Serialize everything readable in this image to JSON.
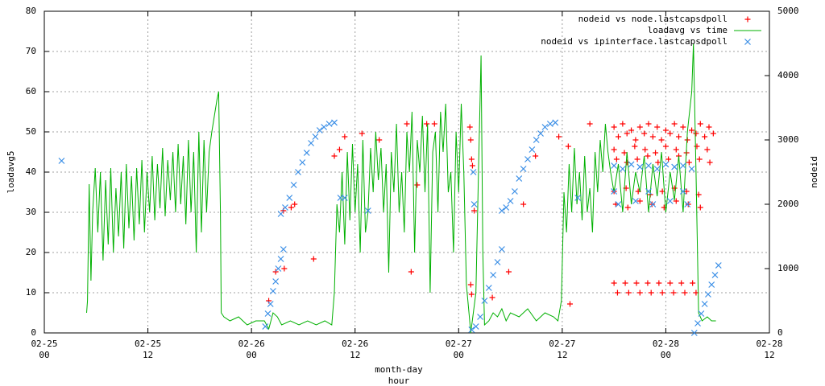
{
  "chart_data": {
    "type": "line",
    "xlabel": [
      "month-day",
      "hour"
    ],
    "ylabel": "loadavg5",
    "y2label": "nodeid",
    "grid": true,
    "legend": "top-right",
    "xlim": [
      0,
      84
    ],
    "xticks": [
      {
        "value": 0,
        "label": [
          "02-25",
          "00"
        ]
      },
      {
        "value": 12,
        "label": [
          "02-25",
          "12"
        ]
      },
      {
        "value": 24,
        "label": [
          "02-26",
          "00"
        ]
      },
      {
        "value": 36,
        "label": [
          "02-26",
          "12"
        ]
      },
      {
        "value": 48,
        "label": [
          "02-27",
          "00"
        ]
      },
      {
        "value": 60,
        "label": [
          "02-27",
          "12"
        ]
      },
      {
        "value": 72,
        "label": [
          "02-28",
          "00"
        ]
      },
      {
        "value": 84,
        "label": [
          "02-28",
          "12"
        ]
      }
    ],
    "ylim": [
      0,
      80
    ],
    "yticks": [
      0,
      10,
      20,
      30,
      40,
      50,
      60,
      70,
      80
    ],
    "y2lim": [
      0,
      5000
    ],
    "y2ticks": [
      0,
      1000,
      2000,
      3000,
      4000,
      5000
    ],
    "series": [
      {
        "name": "nodeid vs node.lastcapsdpoll",
        "type": "scatter",
        "marker": "plus",
        "color": "#ff0000",
        "axis": "y2",
        "x": [
          26.0,
          26.8,
          27.8,
          27.7,
          28.6,
          29.0,
          31.2,
          33.6,
          34.2,
          34.8,
          36.8,
          38.8,
          42.0,
          43.2,
          44.3,
          45.2,
          42.5,
          49.3,
          49.4,
          49.5,
          49.6,
          49.4,
          49.5,
          49.8,
          51.9,
          53.8,
          55.5,
          56.9,
          59.6,
          60.7,
          60.9,
          63.2,
          66.0,
          67.0,
          68.0,
          69.0,
          70.0,
          71.0,
          72.0,
          73.0,
          74.0,
          75.0,
          76.0,
          77.0,
          66.5,
          67.5,
          68.5,
          69.5,
          70.5,
          71.5,
          72.5,
          73.5,
          74.5,
          75.5,
          76.5,
          77.5,
          66.0,
          67.2,
          68.4,
          69.6,
          70.8,
          72.0,
          73.2,
          74.4,
          75.6,
          76.8,
          66.3,
          67.5,
          68.7,
          69.9,
          71.1,
          72.3,
          73.5,
          74.7,
          75.9,
          77.1,
          66.0,
          67.4,
          68.8,
          70.2,
          71.6,
          73.0,
          74.4,
          75.8,
          66.2,
          67.6,
          69.0,
          70.4,
          71.8,
          73.2,
          74.6,
          76.0,
          66.0,
          67.3,
          68.6,
          69.9,
          71.2,
          72.5,
          73.8,
          75.1,
          66.4,
          67.7,
          69.0,
          70.3,
          71.6,
          72.9,
          74.2,
          75.5
        ],
        "values": [
          500,
          950,
          1000,
          1900,
          1950,
          2000,
          1150,
          2750,
          2850,
          3050,
          3100,
          3000,
          3250,
          2300,
          3250,
          3250,
          950,
          3200,
          3000,
          2700,
          2600,
          750,
          600,
          1900,
          550,
          950,
          2000,
          2750,
          3050,
          2900,
          450,
          3250,
          3200,
          3250,
          3150,
          3200,
          3250,
          3200,
          3150,
          3250,
          3200,
          3150,
          3250,
          3200,
          3050,
          3100,
          3000,
          3100,
          3050,
          3000,
          3100,
          3050,
          3000,
          3100,
          3050,
          3100,
          2850,
          2800,
          2900,
          2850,
          2800,
          2900,
          2850,
          2800,
          2900,
          2850,
          2700,
          2650,
          2700,
          2750,
          2650,
          2700,
          2750,
          2650,
          2700,
          2650,
          2200,
          2250,
          2200,
          2150,
          2200,
          2250,
          2200,
          2150,
          2000,
          1950,
          2050,
          2000,
          1950,
          2050,
          2000,
          1950,
          775,
          775,
          775,
          775,
          775,
          775,
          775,
          775,
          625,
          625,
          625,
          625,
          625,
          625,
          625,
          625
        ]
      },
      {
        "name": "loadavg vs time",
        "type": "line",
        "color": "#00b000",
        "axis": "y",
        "x": [
          4.9,
          5.0,
          5.2,
          5.4,
          5.6,
          5.9,
          6.2,
          6.5,
          6.8,
          7.1,
          7.4,
          7.7,
          8.0,
          8.3,
          8.6,
          8.9,
          9.2,
          9.5,
          9.8,
          10.1,
          10.4,
          10.7,
          11.0,
          11.3,
          11.6,
          11.9,
          12.2,
          12.5,
          12.8,
          13.1,
          13.4,
          13.7,
          14.0,
          14.3,
          14.6,
          14.9,
          15.2,
          15.5,
          15.8,
          16.1,
          16.4,
          16.7,
          17.0,
          17.3,
          17.6,
          17.9,
          18.2,
          18.5,
          18.8,
          19.1,
          19.4,
          19.7,
          20.0,
          20.2,
          20.4,
          20.5,
          20.8,
          21.5,
          22.5,
          23.5,
          24.5,
          25.5,
          26.0,
          26.5,
          27.0,
          27.5,
          28.5,
          29.5,
          30.5,
          31.5,
          32.5,
          33.3,
          33.6,
          33.9,
          34.2,
          34.5,
          34.8,
          35.1,
          35.4,
          35.7,
          36.0,
          36.3,
          36.6,
          36.9,
          37.2,
          37.5,
          37.8,
          38.1,
          38.4,
          38.7,
          39.0,
          39.3,
          39.6,
          39.9,
          40.2,
          40.5,
          40.8,
          41.1,
          41.4,
          41.7,
          42.0,
          42.3,
          42.6,
          42.9,
          43.2,
          43.5,
          43.8,
          44.1,
          44.4,
          44.7,
          45.0,
          45.3,
          45.6,
          45.9,
          46.2,
          46.5,
          46.8,
          47.1,
          47.4,
          47.7,
          48.0,
          48.3,
          48.6,
          48.9,
          49.2,
          49.4,
          49.7,
          50.0,
          50.3,
          50.6,
          50.8,
          51.0,
          51.5,
          52.0,
          52.5,
          53.0,
          53.5,
          54.0,
          55.0,
          56.0,
          57.0,
          58.0,
          59.0,
          59.5,
          59.9,
          60.2,
          60.5,
          60.8,
          61.1,
          61.4,
          61.7,
          62.0,
          62.3,
          62.6,
          62.9,
          63.2,
          63.5,
          63.8,
          64.1,
          64.4,
          64.7,
          65.0,
          65.3,
          65.6,
          66.0,
          66.5,
          67.0,
          67.5,
          68.0,
          68.5,
          69.0,
          69.5,
          70.0,
          70.5,
          71.0,
          71.5,
          72.0,
          72.5,
          73.0,
          73.5,
          74.0,
          74.5,
          75.0,
          75.2,
          75.5,
          75.8,
          76.2,
          76.8,
          77.3,
          77.8
        ],
        "values": [
          5,
          8,
          37,
          13,
          30,
          41,
          25,
          40,
          18,
          38,
          22,
          41,
          20,
          36,
          24,
          40,
          21,
          42,
          26,
          39,
          23,
          41,
          27,
          43,
          25,
          40,
          30,
          44,
          28,
          42,
          31,
          46,
          29,
          43,
          33,
          45,
          30,
          47,
          32,
          44,
          27,
          48,
          30,
          45,
          20,
          50,
          25,
          48,
          30,
          45,
          50,
          54,
          58,
          60,
          30,
          5,
          4,
          3,
          4,
          2,
          3,
          3,
          1,
          5,
          4,
          2,
          3,
          2,
          3,
          2,
          3,
          2,
          10,
          32,
          25,
          40,
          22,
          45,
          28,
          47,
          30,
          42,
          20,
          48,
          25,
          30,
          46,
          35,
          50,
          38,
          46,
          30,
          42,
          15,
          45,
          35,
          52,
          30,
          40,
          25,
          50,
          40,
          55,
          20,
          48,
          40,
          54,
          35,
          52,
          10,
          45,
          50,
          30,
          55,
          45,
          57,
          35,
          40,
          20,
          50,
          35,
          57,
          40,
          12,
          5,
          0,
          5,
          10,
          40,
          69,
          20,
          2,
          3,
          5,
          4,
          6,
          3,
          5,
          4,
          6,
          3,
          5,
          4,
          3,
          8,
          35,
          25,
          42,
          30,
          46,
          32,
          40,
          28,
          44,
          30,
          36,
          25,
          45,
          35,
          48,
          40,
          52,
          45,
          40,
          35,
          42,
          30,
          45,
          32,
          40,
          35,
          44,
          30,
          42,
          34,
          45,
          30,
          40,
          33,
          44,
          30,
          50,
          60,
          72,
          40,
          5,
          3,
          4,
          3,
          3
        ]
      },
      {
        "name": "nodeid vs ipinterface.lastcapsdpoll",
        "type": "scatter",
        "marker": "cross",
        "color": "#3a8ee6",
        "axis": "y2",
        "x": [
          2.0,
          25.6,
          25.9,
          26.2,
          26.5,
          26.8,
          27.1,
          27.4,
          27.7,
          27.4,
          27.9,
          28.4,
          28.9,
          29.4,
          29.9,
          30.4,
          30.9,
          31.4,
          31.9,
          32.4,
          33.0,
          33.6,
          34.3,
          34.8,
          37.5,
          49.7,
          49.8,
          49.5,
          50.0,
          50.5,
          51.0,
          51.5,
          52.0,
          52.5,
          53.0,
          53.0,
          53.5,
          54.0,
          54.5,
          55.0,
          55.5,
          56.0,
          56.5,
          57.0,
          57.5,
          58.0,
          58.6,
          59.2,
          61.8,
          66.0,
          67.0,
          68.0,
          69.0,
          70.0,
          71.0,
          72.0,
          73.0,
          74.0,
          75.0,
          66.5,
          68.5,
          70.5,
          72.5,
          74.5,
          66.0,
          70.0,
          74.0,
          75.3,
          75.7,
          76.1,
          76.5,
          76.9,
          77.3,
          77.7,
          78.1
        ],
        "values": [
          2675,
          100,
          300,
          450,
          650,
          800,
          1000,
          1150,
          1300,
          1850,
          1950,
          2100,
          2300,
          2500,
          2650,
          2800,
          2950,
          3050,
          3150,
          3200,
          3250,
          3270,
          2100,
          2100,
          1900,
          2500,
          2000,
          50,
          100,
          250,
          500,
          700,
          900,
          1100,
          1300,
          1900,
          1950,
          2050,
          2200,
          2400,
          2550,
          2700,
          2850,
          3000,
          3100,
          3200,
          3250,
          3270,
          2100,
          2600,
          2550,
          2620,
          2580,
          2600,
          2550,
          2620,
          2580,
          2600,
          2550,
          2000,
          2050,
          2000,
          2050,
          2000,
          2200,
          2200,
          2200,
          0,
          150,
          300,
          450,
          600,
          750,
          900,
          1050
        ]
      }
    ]
  }
}
